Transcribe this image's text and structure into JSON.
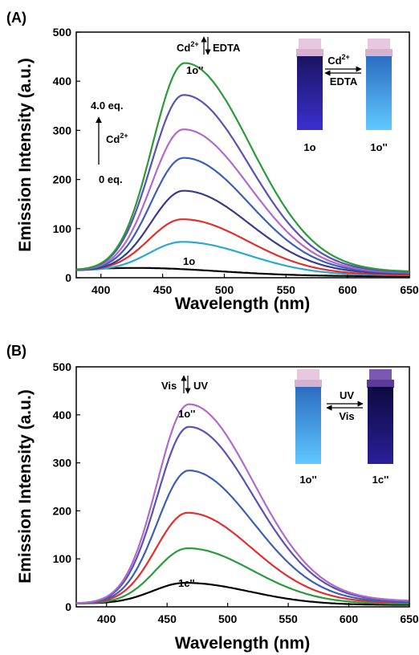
{
  "chart_data": [
    {
      "panel": "(A)",
      "type": "line",
      "xlabel": "Wavelength (nm)",
      "ylabel": "Emission Intensity (a.u.)",
      "xlim": [
        380,
        650
      ],
      "ylim": [
        0,
        500
      ],
      "xticks": [
        400,
        450,
        500,
        550,
        600,
        650
      ],
      "yticks": [
        0,
        100,
        200,
        300,
        400,
        500
      ],
      "grid": false,
      "series": [
        {
          "label": "1o",
          "color": "#000000",
          "peak_x": 428,
          "peak_y": 20,
          "start_y": 15,
          "end_y": 3,
          "width_l": 50,
          "width_r": 95
        },
        {
          "color": "#29a9cf",
          "peak_x": 466,
          "peak_y": 73,
          "start_y": 15,
          "end_y": 5,
          "width_l": 38,
          "width_r": 75
        },
        {
          "color": "#e0302e",
          "peak_x": 466,
          "peak_y": 119,
          "start_y": 15,
          "end_y": 6,
          "width_l": 38,
          "width_r": 75
        },
        {
          "color": "#3a3a8c",
          "peak_x": 467,
          "peak_y": 177,
          "start_y": 15,
          "end_y": 8,
          "width_l": 37,
          "width_r": 75
        },
        {
          "color": "#3b5fb8",
          "peak_x": 467,
          "peak_y": 244,
          "start_y": 15,
          "end_y": 9,
          "width_l": 37,
          "width_r": 75
        },
        {
          "color": "#b06ac8",
          "peak_x": 467,
          "peak_y": 302,
          "start_y": 15,
          "end_y": 10,
          "width_l": 37,
          "width_r": 75
        },
        {
          "color": "#5a50b8",
          "peak_x": 467,
          "peak_y": 372,
          "start_y": 15,
          "end_y": 11,
          "width_l": 37,
          "width_r": 75
        },
        {
          "label": "1o''",
          "color": "#2a9a3a",
          "peak_x": 468,
          "peak_y": 437,
          "start_y": 15,
          "end_y": 12,
          "width_l": 37,
          "width_r": 75
        }
      ],
      "annotations": {
        "top_left": "Cd",
        "top_left_sup": "2+",
        "top_right": "EDTA",
        "peak_label": "1o''",
        "base_label": "1o",
        "arrow_top": "4.0 eq.",
        "arrow_mid": "Cd",
        "arrow_mid_sup": "2+",
        "arrow_bottom": "0 eq."
      },
      "inset": {
        "left_caption": "1o",
        "right_caption": "1o''",
        "top_arrow": "Cd",
        "top_arrow_sup": "2+",
        "bottom_arrow": "EDTA",
        "left_glow": "#3a2fd0",
        "right_glow": "#5fc8ff"
      }
    },
    {
      "panel": "(B)",
      "type": "line",
      "xlabel": "Wavelength (nm)",
      "ylabel": "Emission Intensity (a.u.)",
      "xlim": [
        375,
        650
      ],
      "ylim": [
        0,
        500
      ],
      "xticks": [
        400,
        450,
        500,
        550,
        600,
        650
      ],
      "yticks": [
        0,
        100,
        200,
        300,
        400,
        500
      ],
      "grid": false,
      "series": [
        {
          "label": "1c''",
          "color": "#000000",
          "peak_x": 465,
          "peak_y": 50,
          "start_y": 7,
          "end_y": 4,
          "width_l": 38,
          "width_r": 75
        },
        {
          "color": "#2a9a3a",
          "peak_x": 467,
          "peak_y": 122,
          "start_y": 7,
          "end_y": 6,
          "width_l": 37,
          "width_r": 75
        },
        {
          "color": "#e0302e",
          "peak_x": 467,
          "peak_y": 196,
          "start_y": 7,
          "end_y": 8,
          "width_l": 37,
          "width_r": 75
        },
        {
          "color": "#3b5fb8",
          "peak_x": 468,
          "peak_y": 284,
          "start_y": 7,
          "end_y": 9,
          "width_l": 37,
          "width_r": 75
        },
        {
          "color": "#5a50b8",
          "peak_x": 468,
          "peak_y": 375,
          "start_y": 7,
          "end_y": 11,
          "width_l": 37,
          "width_r": 75
        },
        {
          "label": "1o''",
          "color": "#b06ac8",
          "peak_x": 468,
          "peak_y": 422,
          "start_y": 7,
          "end_y": 12,
          "width_l": 37,
          "width_r": 75
        }
      ],
      "annotations": {
        "top_left": "Vis",
        "top_right": "UV",
        "peak_label": "1o''",
        "base_label": "1c''"
      },
      "inset": {
        "left_caption": "1o''",
        "right_caption": "1c''",
        "top_arrow": "UV",
        "bottom_arrow": "Vis",
        "left_glow": "#5fc8ff",
        "right_glow": "#2a1f9a"
      }
    }
  ]
}
